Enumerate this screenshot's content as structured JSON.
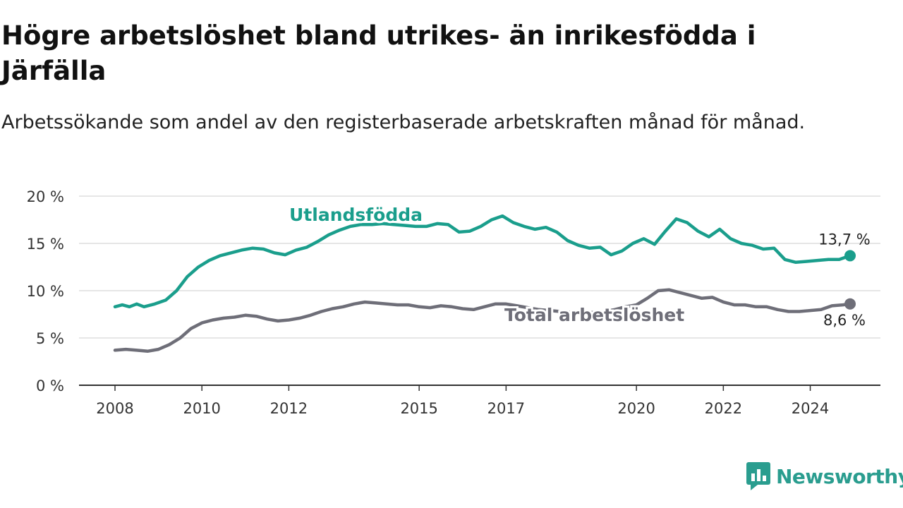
{
  "colors": {
    "utland": "#1a9e8c",
    "total": "#6e6e78",
    "grid": "#dddddd",
    "brand": "#2a9d8f"
  },
  "brand": {
    "name": "Newsworthy",
    "icon": "bar-chart-chat-icon"
  },
  "chart_data": {
    "type": "line",
    "title": "Högre arbetslöshet bland utrikes- än inrikesfödda i Järfälla",
    "subtitle": "Arbetssökande som andel av den registerbaserade arbetskraften månad för månad.",
    "xlabel": "",
    "ylabel": "",
    "x_ticks": [
      "2008",
      "2010",
      "2012",
      "2015",
      "2017",
      "2020",
      "2022",
      "2024"
    ],
    "y_ticks": [
      "0 %",
      "5 %",
      "10 %",
      "15 %",
      "20 %"
    ],
    "ylim": [
      0,
      20
    ],
    "xlim": [
      "2008-01",
      "2024-12"
    ],
    "grid": true,
    "series": [
      {
        "name": "Utlandsfödda",
        "end_label": "13,7 %",
        "points": [
          [
            "2008-01",
            8.3
          ],
          [
            "2008-03",
            8.5
          ],
          [
            "2008-05",
            8.3
          ],
          [
            "2008-07",
            8.6
          ],
          [
            "2008-09",
            8.3
          ],
          [
            "2008-12",
            8.6
          ],
          [
            "2009-03",
            9.0
          ],
          [
            "2009-06",
            10.0
          ],
          [
            "2009-09",
            11.5
          ],
          [
            "2009-12",
            12.5
          ],
          [
            "2010-03",
            13.2
          ],
          [
            "2010-06",
            13.7
          ],
          [
            "2010-09",
            14.0
          ],
          [
            "2010-12",
            14.3
          ],
          [
            "2011-03",
            14.5
          ],
          [
            "2011-06",
            14.4
          ],
          [
            "2011-09",
            14.0
          ],
          [
            "2011-12",
            13.8
          ],
          [
            "2012-03",
            14.3
          ],
          [
            "2012-06",
            14.6
          ],
          [
            "2012-09",
            15.2
          ],
          [
            "2012-12",
            15.9
          ],
          [
            "2013-03",
            16.4
          ],
          [
            "2013-06",
            16.8
          ],
          [
            "2013-09",
            17.0
          ],
          [
            "2013-12",
            17.0
          ],
          [
            "2014-03",
            17.1
          ],
          [
            "2014-06",
            17.0
          ],
          [
            "2014-09",
            16.9
          ],
          [
            "2014-12",
            16.8
          ],
          [
            "2015-03",
            16.8
          ],
          [
            "2015-06",
            17.1
          ],
          [
            "2015-09",
            17.0
          ],
          [
            "2015-12",
            16.2
          ],
          [
            "2016-03",
            16.3
          ],
          [
            "2016-06",
            16.8
          ],
          [
            "2016-09",
            17.5
          ],
          [
            "2016-12",
            17.9
          ],
          [
            "2017-03",
            17.2
          ],
          [
            "2017-06",
            16.8
          ],
          [
            "2017-09",
            16.5
          ],
          [
            "2017-12",
            16.7
          ],
          [
            "2018-03",
            16.2
          ],
          [
            "2018-06",
            15.3
          ],
          [
            "2018-09",
            14.8
          ],
          [
            "2018-12",
            14.5
          ],
          [
            "2019-03",
            14.6
          ],
          [
            "2019-06",
            13.8
          ],
          [
            "2019-09",
            14.2
          ],
          [
            "2019-12",
            15.0
          ],
          [
            "2020-03",
            15.5
          ],
          [
            "2020-06",
            14.9
          ],
          [
            "2020-09",
            16.3
          ],
          [
            "2020-12",
            17.6
          ],
          [
            "2021-03",
            17.2
          ],
          [
            "2021-06",
            16.3
          ],
          [
            "2021-09",
            15.7
          ],
          [
            "2021-12",
            16.5
          ],
          [
            "2022-03",
            15.5
          ],
          [
            "2022-06",
            15.0
          ],
          [
            "2022-09",
            14.8
          ],
          [
            "2022-12",
            14.4
          ],
          [
            "2023-03",
            14.5
          ],
          [
            "2023-06",
            13.3
          ],
          [
            "2023-09",
            13.0
          ],
          [
            "2023-12",
            13.1
          ],
          [
            "2024-03",
            13.2
          ],
          [
            "2024-06",
            13.3
          ],
          [
            "2024-09",
            13.3
          ],
          [
            "2024-12",
            13.7
          ]
        ]
      },
      {
        "name": "Total arbetslöshet",
        "end_label": "8,6 %",
        "points": [
          [
            "2008-01",
            3.7
          ],
          [
            "2008-04",
            3.8
          ],
          [
            "2008-07",
            3.7
          ],
          [
            "2008-10",
            3.6
          ],
          [
            "2009-01",
            3.8
          ],
          [
            "2009-04",
            4.3
          ],
          [
            "2009-07",
            5.0
          ],
          [
            "2009-10",
            6.0
          ],
          [
            "2010-01",
            6.6
          ],
          [
            "2010-04",
            6.9
          ],
          [
            "2010-07",
            7.1
          ],
          [
            "2010-10",
            7.2
          ],
          [
            "2011-01",
            7.4
          ],
          [
            "2011-04",
            7.3
          ],
          [
            "2011-07",
            7.0
          ],
          [
            "2011-10",
            6.8
          ],
          [
            "2012-01",
            6.9
          ],
          [
            "2012-04",
            7.1
          ],
          [
            "2012-07",
            7.4
          ],
          [
            "2012-10",
            7.8
          ],
          [
            "2013-01",
            8.1
          ],
          [
            "2013-04",
            8.3
          ],
          [
            "2013-07",
            8.6
          ],
          [
            "2013-10",
            8.8
          ],
          [
            "2014-01",
            8.7
          ],
          [
            "2014-04",
            8.6
          ],
          [
            "2014-07",
            8.5
          ],
          [
            "2014-10",
            8.5
          ],
          [
            "2015-01",
            8.3
          ],
          [
            "2015-04",
            8.2
          ],
          [
            "2015-07",
            8.4
          ],
          [
            "2015-10",
            8.3
          ],
          [
            "2016-01",
            8.1
          ],
          [
            "2016-04",
            8.0
          ],
          [
            "2016-07",
            8.3
          ],
          [
            "2016-10",
            8.6
          ],
          [
            "2017-01",
            8.6
          ],
          [
            "2017-04",
            8.4
          ],
          [
            "2017-07",
            8.2
          ],
          [
            "2017-10",
            8.0
          ],
          [
            "2018-01",
            7.9
          ],
          [
            "2018-04",
            7.8
          ],
          [
            "2018-07",
            7.7
          ],
          [
            "2018-10",
            7.6
          ],
          [
            "2019-01",
            7.7
          ],
          [
            "2019-04",
            7.8
          ],
          [
            "2019-07",
            8.0
          ],
          [
            "2019-10",
            8.3
          ],
          [
            "2020-01",
            8.5
          ],
          [
            "2020-04",
            9.2
          ],
          [
            "2020-07",
            10.0
          ],
          [
            "2020-10",
            10.1
          ],
          [
            "2021-01",
            9.8
          ],
          [
            "2021-04",
            9.5
          ],
          [
            "2021-07",
            9.2
          ],
          [
            "2021-10",
            9.3
          ],
          [
            "2022-01",
            8.8
          ],
          [
            "2022-04",
            8.5
          ],
          [
            "2022-07",
            8.5
          ],
          [
            "2022-10",
            8.3
          ],
          [
            "2023-01",
            8.3
          ],
          [
            "2023-04",
            8.0
          ],
          [
            "2023-07",
            7.8
          ],
          [
            "2023-10",
            7.8
          ],
          [
            "2024-01",
            7.9
          ],
          [
            "2024-04",
            8.0
          ],
          [
            "2024-07",
            8.4
          ],
          [
            "2024-10",
            8.5
          ],
          [
            "2024-12",
            8.6
          ]
        ]
      }
    ]
  }
}
